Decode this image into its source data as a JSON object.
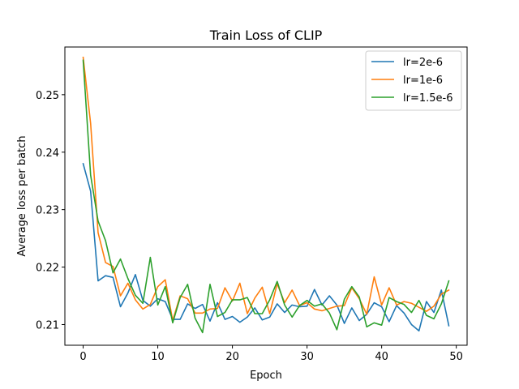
{
  "chart_data": {
    "type": "line",
    "title": "Train Loss of CLIP",
    "xlabel": "Epoch",
    "ylabel": "Average loss per batch",
    "xlim": [
      -2.45,
      51.45
    ],
    "ylim": [
      0.2064,
      0.2583
    ],
    "xticks": [
      0,
      10,
      20,
      30,
      40,
      50
    ],
    "yticks": [
      0.21,
      0.22,
      0.23,
      0.24,
      0.25
    ],
    "yticklabels": [
      "0.21",
      "0.22",
      "0.23",
      "0.24",
      "0.25"
    ],
    "grid": false,
    "legend_position": "top-right",
    "x": [
      0,
      1,
      2,
      3,
      4,
      5,
      6,
      7,
      8,
      9,
      10,
      11,
      12,
      13,
      14,
      15,
      16,
      17,
      18,
      19,
      20,
      21,
      22,
      23,
      24,
      25,
      26,
      27,
      28,
      29,
      30,
      31,
      32,
      33,
      34,
      35,
      36,
      37,
      38,
      39,
      40,
      41,
      42,
      43,
      44,
      45,
      46,
      47,
      48,
      49
    ],
    "series": [
      {
        "name": "lr=2e-6",
        "color": "#1f77b4",
        "values": [
          0.238,
          0.2332,
          0.2176,
          0.2185,
          0.2182,
          0.2131,
          0.2155,
          0.2187,
          0.2142,
          0.2132,
          0.2145,
          0.214,
          0.2109,
          0.2109,
          0.2136,
          0.2128,
          0.2135,
          0.2106,
          0.2138,
          0.2109,
          0.2114,
          0.2104,
          0.2113,
          0.2129,
          0.2108,
          0.2113,
          0.2136,
          0.2121,
          0.2134,
          0.2131,
          0.2132,
          0.2161,
          0.2134,
          0.215,
          0.2134,
          0.2102,
          0.2129,
          0.2107,
          0.2118,
          0.2138,
          0.2131,
          0.2105,
          0.2133,
          0.212,
          0.21,
          0.2089,
          0.214,
          0.2121,
          0.216,
          0.2098
        ]
      },
      {
        "name": "lr=1e-6",
        "color": "#ff7f0e",
        "values": [
          0.2565,
          0.245,
          0.226,
          0.2208,
          0.2201,
          0.215,
          0.2172,
          0.2143,
          0.2127,
          0.2135,
          0.2166,
          0.2178,
          0.2107,
          0.215,
          0.2145,
          0.212,
          0.212,
          0.2127,
          0.2128,
          0.2164,
          0.2141,
          0.2172,
          0.2119,
          0.2146,
          0.2165,
          0.2119,
          0.2171,
          0.2138,
          0.216,
          0.2133,
          0.2138,
          0.2127,
          0.2124,
          0.2128,
          0.2132,
          0.2133,
          0.2164,
          0.2145,
          0.2118,
          0.2183,
          0.2134,
          0.2164,
          0.2134,
          0.214,
          0.2137,
          0.213,
          0.2123,
          0.2132,
          0.2153,
          0.216
        ]
      },
      {
        "name": "lr=1.5e-6",
        "color": "#2ca02c",
        "values": [
          0.256,
          0.236,
          0.228,
          0.2246,
          0.219,
          0.2214,
          0.218,
          0.2151,
          0.2137,
          0.2217,
          0.2134,
          0.2166,
          0.2103,
          0.2147,
          0.217,
          0.2111,
          0.2086,
          0.217,
          0.2114,
          0.2121,
          0.2143,
          0.2143,
          0.2147,
          0.2119,
          0.2119,
          0.2143,
          0.2175,
          0.2134,
          0.2113,
          0.2133,
          0.2142,
          0.2132,
          0.2136,
          0.212,
          0.2091,
          0.2144,
          0.2166,
          0.2148,
          0.2096,
          0.2103,
          0.2099,
          0.2147,
          0.214,
          0.2135,
          0.2121,
          0.2142,
          0.2116,
          0.211,
          0.2136,
          0.2176
        ]
      }
    ]
  }
}
